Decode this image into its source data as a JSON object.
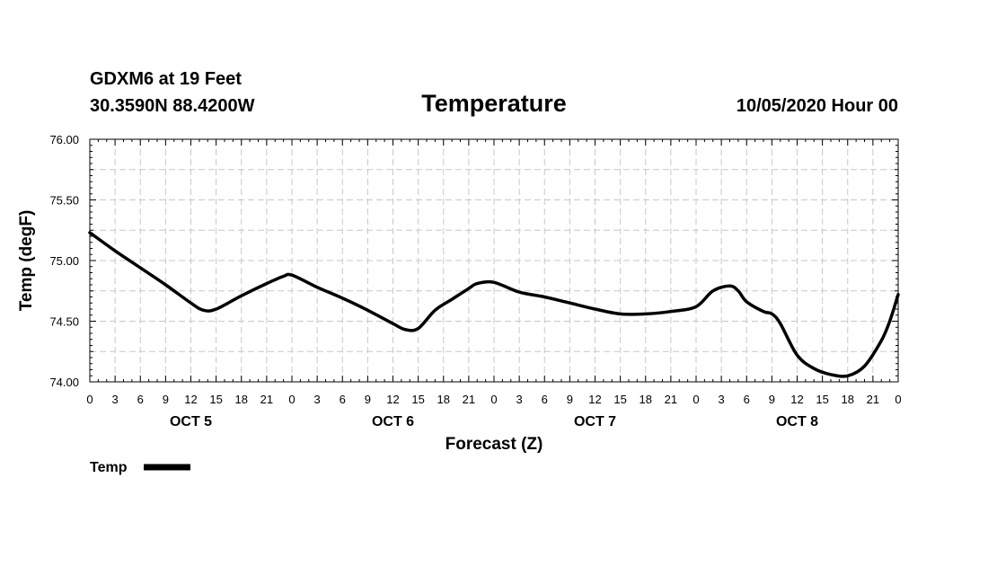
{
  "header": {
    "station": "GDXM6 at 19 Feet",
    "coords": "30.3590N 88.4200W",
    "datetime": "10/05/2020 Hour 00"
  },
  "chart_data": {
    "type": "line",
    "title": "Temperature",
    "xlabel": "Forecast (Z)",
    "ylabel": "Temp (degF)",
    "ylim": [
      74.0,
      76.0
    ],
    "yticks": [
      "74.00",
      "74.50",
      "75.00",
      "75.50",
      "76.00"
    ],
    "xlim": [
      0,
      96
    ],
    "xtick_labels": [
      "0",
      "3",
      "6",
      "9",
      "12",
      "15",
      "18",
      "21",
      "0",
      "3",
      "6",
      "9",
      "12",
      "15",
      "18",
      "21",
      "0",
      "3",
      "6",
      "9",
      "12",
      "15",
      "18",
      "21",
      "0",
      "3",
      "6",
      "9",
      "12",
      "15",
      "18",
      "21",
      "0"
    ],
    "day_labels": [
      {
        "label": "OCT 5",
        "hour": 12
      },
      {
        "label": "OCT 6",
        "hour": 36
      },
      {
        "label": "OCT 7",
        "hour": 60
      },
      {
        "label": "OCT 8",
        "hour": 84
      }
    ],
    "grid": true,
    "legend_position": "bottom-left",
    "series": [
      {
        "name": "Temp",
        "color": "#000000",
        "x": [
          0,
          3,
          6,
          9,
          12,
          13.5,
          15,
          18,
          21,
          23,
          24,
          27,
          30,
          33,
          36,
          37.5,
          39,
          41,
          43,
          45,
          46,
          48,
          51,
          54,
          57,
          60,
          63,
          66,
          69,
          72,
          74,
          76,
          77,
          78,
          80,
          81,
          82,
          84,
          86,
          88,
          90,
          92,
          94,
          95,
          96
        ],
        "values": [
          75.23,
          75.08,
          74.94,
          74.8,
          74.65,
          74.59,
          74.6,
          74.71,
          74.81,
          74.87,
          74.88,
          74.78,
          74.69,
          74.59,
          74.48,
          74.43,
          74.44,
          74.59,
          74.68,
          74.77,
          74.81,
          74.82,
          74.74,
          74.7,
          74.65,
          74.6,
          74.56,
          74.56,
          74.58,
          74.62,
          74.75,
          74.79,
          74.75,
          74.66,
          74.58,
          74.56,
          74.48,
          74.22,
          74.11,
          74.06,
          74.05,
          74.13,
          74.34,
          74.5,
          74.72
        ]
      }
    ]
  }
}
